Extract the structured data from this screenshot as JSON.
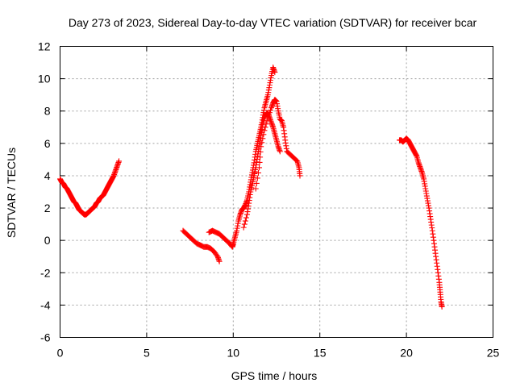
{
  "chart_data": {
    "type": "scatter",
    "title": "Day 273 of 2023, Sidereal Day-to-day VTEC variation (SDTVAR) for receiver bcar",
    "xlabel": "GPS time / hours",
    "ylabel": "SDTVAR / TECUs",
    "xlim": [
      0,
      25
    ],
    "ylim": [
      -6,
      12
    ],
    "xticks": [
      0,
      5,
      10,
      15,
      20,
      25
    ],
    "yticks": [
      -6,
      -4,
      -2,
      0,
      2,
      4,
      6,
      8,
      10,
      12
    ],
    "xtick_labels": [
      "0",
      "5",
      "10",
      "15",
      "20",
      "25"
    ],
    "ytick_labels": [
      "-6",
      "-4",
      "-2",
      "0",
      "2",
      "4",
      "6",
      "8",
      "10",
      "12"
    ],
    "grid": true,
    "marker": "plus",
    "color": "#ff0000",
    "series": [
      {
        "name": "segment-1",
        "points": [
          [
            0.0,
            3.8
          ],
          [
            0.1,
            3.6
          ],
          [
            0.2,
            3.5
          ],
          [
            0.3,
            3.3
          ],
          [
            0.4,
            3.2
          ],
          [
            0.5,
            3.0
          ],
          [
            0.6,
            2.8
          ],
          [
            0.7,
            2.6
          ],
          [
            0.8,
            2.4
          ],
          [
            0.9,
            2.3
          ],
          [
            1.0,
            2.1
          ],
          [
            1.1,
            1.9
          ],
          [
            1.2,
            1.8
          ],
          [
            1.3,
            1.7
          ],
          [
            1.4,
            1.6
          ],
          [
            1.5,
            1.6
          ],
          [
            1.6,
            1.7
          ],
          [
            1.7,
            1.8
          ],
          [
            1.8,
            1.9
          ],
          [
            1.9,
            2.0
          ],
          [
            2.0,
            2.1
          ],
          [
            2.1,
            2.3
          ],
          [
            2.2,
            2.4
          ],
          [
            2.3,
            2.6
          ],
          [
            2.4,
            2.7
          ],
          [
            2.5,
            2.8
          ],
          [
            2.6,
            3.0
          ],
          [
            2.7,
            3.2
          ],
          [
            2.8,
            3.4
          ],
          [
            2.9,
            3.6
          ],
          [
            3.0,
            3.8
          ],
          [
            3.1,
            4.0
          ],
          [
            3.2,
            4.3
          ],
          [
            3.3,
            4.6
          ],
          [
            3.4,
            4.9
          ]
        ]
      },
      {
        "name": "segment-2",
        "points": [
          [
            7.1,
            0.6
          ],
          [
            7.3,
            0.4
          ],
          [
            7.5,
            0.2
          ],
          [
            7.7,
            0.0
          ],
          [
            7.9,
            -0.2
          ],
          [
            8.1,
            -0.3
          ],
          [
            8.3,
            -0.4
          ],
          [
            8.5,
            -0.4
          ],
          [
            8.7,
            -0.5
          ],
          [
            8.9,
            -0.7
          ],
          [
            9.1,
            -1.0
          ],
          [
            9.2,
            -1.3
          ]
        ]
      },
      {
        "name": "segment-3",
        "points": [
          [
            8.6,
            0.5
          ],
          [
            8.8,
            0.6
          ],
          [
            9.0,
            0.5
          ],
          [
            9.2,
            0.4
          ],
          [
            9.4,
            0.2
          ],
          [
            9.6,
            0.0
          ],
          [
            9.8,
            -0.2
          ],
          [
            9.95,
            -0.4
          ],
          [
            10.0,
            -0.2
          ],
          [
            10.1,
            0.2
          ],
          [
            10.2,
            0.6
          ],
          [
            10.3,
            1.2
          ],
          [
            10.4,
            1.6
          ],
          [
            10.5,
            1.9
          ],
          [
            10.6,
            2.0
          ],
          [
            10.7,
            2.2
          ],
          [
            10.8,
            2.5
          ],
          [
            10.9,
            3.0
          ],
          [
            11.0,
            3.6
          ],
          [
            11.1,
            4.2
          ],
          [
            11.2,
            4.8
          ],
          [
            11.3,
            5.5
          ],
          [
            11.4,
            6.0
          ],
          [
            11.5,
            6.5
          ],
          [
            11.6,
            7.0
          ],
          [
            11.7,
            7.6
          ],
          [
            11.8,
            8.2
          ],
          [
            11.9,
            8.6
          ],
          [
            12.0,
            9.0
          ],
          [
            12.1,
            9.6
          ],
          [
            12.2,
            10.2
          ],
          [
            12.3,
            10.7
          ],
          [
            12.4,
            10.4
          ]
        ]
      },
      {
        "name": "segment-4",
        "points": [
          [
            10.6,
            0.8
          ],
          [
            10.8,
            1.6
          ],
          [
            10.9,
            2.3
          ],
          [
            11.0,
            3.0
          ],
          [
            11.1,
            3.5
          ],
          [
            11.2,
            4.0
          ],
          [
            11.3,
            4.5
          ],
          [
            11.4,
            5.2
          ],
          [
            11.5,
            5.8
          ],
          [
            11.6,
            6.5
          ],
          [
            11.7,
            7.2
          ],
          [
            11.8,
            7.6
          ],
          [
            11.9,
            7.8
          ],
          [
            12.0,
            7.9
          ],
          [
            12.1,
            7.6
          ],
          [
            12.2,
            7.3
          ],
          [
            12.3,
            7.0
          ],
          [
            12.4,
            6.6
          ],
          [
            12.5,
            6.2
          ],
          [
            12.6,
            5.8
          ],
          [
            12.7,
            5.5
          ]
        ]
      },
      {
        "name": "segment-5",
        "points": [
          [
            11.3,
            3.2
          ],
          [
            11.5,
            4.5
          ],
          [
            11.6,
            5.8
          ],
          [
            11.8,
            6.8
          ],
          [
            12.0,
            7.6
          ],
          [
            12.2,
            8.2
          ],
          [
            12.3,
            8.5
          ],
          [
            12.4,
            8.7
          ],
          [
            12.5,
            8.6
          ],
          [
            12.6,
            8.0
          ],
          [
            12.7,
            7.5
          ],
          [
            12.8,
            7.4
          ],
          [
            12.9,
            7.0
          ],
          [
            13.0,
            6.2
          ],
          [
            13.1,
            5.5
          ],
          [
            13.3,
            5.3
          ],
          [
            13.5,
            5.1
          ],
          [
            13.7,
            4.9
          ],
          [
            13.8,
            4.5
          ],
          [
            13.85,
            4.0
          ]
        ]
      },
      {
        "name": "segment-6",
        "points": [
          [
            19.6,
            6.2
          ],
          [
            19.7,
            6.2
          ],
          [
            19.8,
            6.1
          ],
          [
            19.9,
            6.2
          ],
          [
            20.0,
            6.3
          ],
          [
            20.1,
            6.2
          ],
          [
            20.2,
            6.0
          ],
          [
            20.3,
            5.8
          ],
          [
            20.4,
            5.6
          ],
          [
            20.5,
            5.4
          ],
          [
            20.6,
            5.2
          ],
          [
            20.7,
            4.8
          ],
          [
            20.8,
            4.5
          ],
          [
            20.9,
            4.2
          ],
          [
            21.0,
            3.8
          ],
          [
            21.1,
            3.2
          ],
          [
            21.2,
            2.6
          ],
          [
            21.3,
            2.0
          ],
          [
            21.4,
            1.3
          ],
          [
            21.5,
            0.6
          ],
          [
            21.6,
            -0.2
          ],
          [
            21.7,
            -1.0
          ],
          [
            21.8,
            -1.8
          ],
          [
            21.9,
            -2.6
          ],
          [
            21.95,
            -3.2
          ],
          [
            22.0,
            -3.8
          ],
          [
            22.05,
            -4.1
          ]
        ]
      }
    ]
  }
}
